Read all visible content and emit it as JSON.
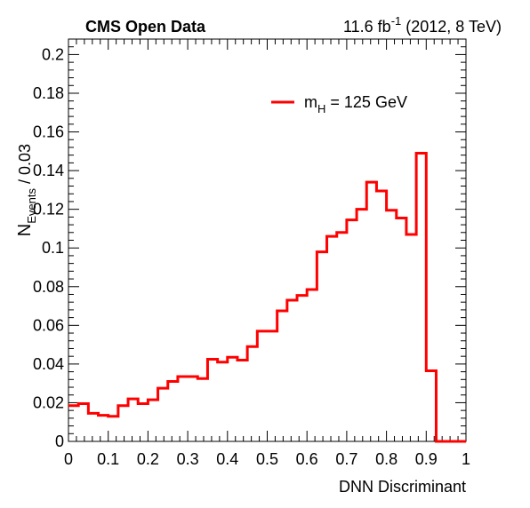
{
  "header": {
    "experiment": "CMS Open Data",
    "lumi_value": "11.6 fb",
    "lumi_exp": "-1",
    "lumi_suffix": " (2012, 8 TeV)"
  },
  "chart_data": {
    "type": "step",
    "xlabel": "DNN Discriminant",
    "ylabel_main": "N",
    "ylabel_sub": "Events",
    "ylabel_suffix": " / 0.03",
    "xlim": [
      0,
      1
    ],
    "ylim": [
      0,
      0.208
    ],
    "x_ticks": [
      0,
      0.1,
      0.2,
      0.3,
      0.4,
      0.5,
      0.6,
      0.7,
      0.8,
      0.9,
      1
    ],
    "x_tick_labels": [
      "0",
      "0.1",
      "0.2",
      "0.3",
      "0.4",
      "0.5",
      "0.6",
      "0.7",
      "0.8",
      "0.9",
      "1"
    ],
    "y_ticks": [
      0,
      0.02,
      0.04,
      0.06,
      0.08,
      0.1,
      0.12,
      0.14,
      0.16,
      0.18,
      0.2
    ],
    "y_tick_labels": [
      "0",
      "0.02",
      "0.04",
      "0.06",
      "0.08",
      "0.1",
      "0.12",
      "0.14",
      "0.16",
      "0.18",
      "0.2"
    ],
    "color": "#ff0000",
    "legend": {
      "label_main": "m",
      "label_sub": "H",
      "label_suffix": " = 125 GeV",
      "position": "top-right"
    },
    "bin_edges": [
      0,
      0.025,
      0.05,
      0.075,
      0.1,
      0.125,
      0.15,
      0.175,
      0.2,
      0.225,
      0.25,
      0.275,
      0.3,
      0.325,
      0.35,
      0.375,
      0.4,
      0.425,
      0.45,
      0.475,
      0.5,
      0.525,
      0.55,
      0.575,
      0.6,
      0.625,
      0.65,
      0.675,
      0.7,
      0.725,
      0.75,
      0.775,
      0.8,
      0.825,
      0.85,
      0.875,
      0.9,
      0.925,
      0.95,
      0.975,
      1.0
    ],
    "values": [
      0.0185,
      0.0195,
      0.0145,
      0.0135,
      0.013,
      0.0185,
      0.022,
      0.0195,
      0.0215,
      0.0275,
      0.031,
      0.0335,
      0.0335,
      0.0325,
      0.0425,
      0.041,
      0.0435,
      0.042,
      0.049,
      0.057,
      0.057,
      0.0675,
      0.073,
      0.0755,
      0.0785,
      0.098,
      0.106,
      0.108,
      0.1145,
      0.12,
      0.134,
      0.1295,
      0.1195,
      0.1155,
      0.107,
      0.149,
      0.0365,
      0.0,
      0.0,
      0.0
    ]
  }
}
